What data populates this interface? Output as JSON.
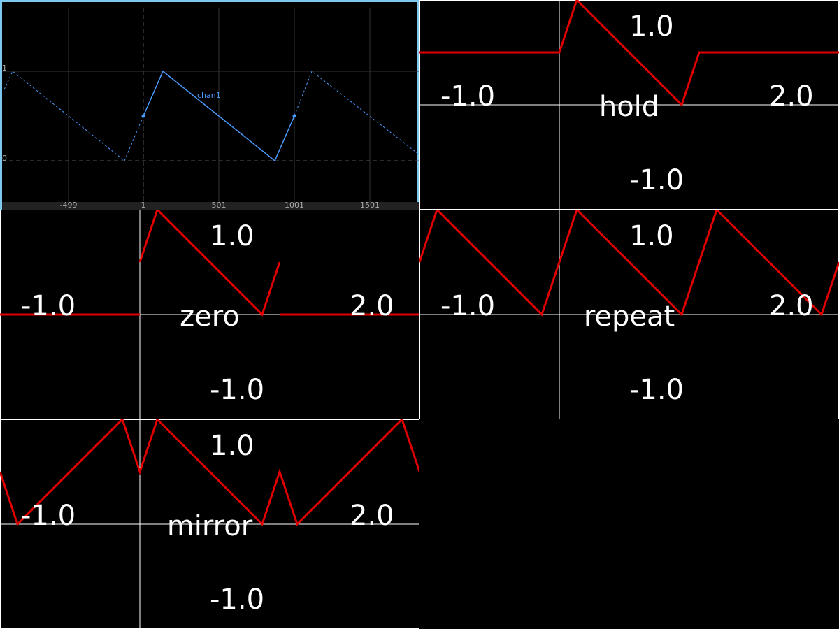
{
  "editor": {
    "channel_name": "chan1",
    "y_ticks": [
      "1",
      "0"
    ],
    "x_ticks": [
      "-499",
      "1",
      "501",
      "1001",
      "1501"
    ],
    "border_color": "#7ec8f0",
    "curve_color": "#4a9cff"
  },
  "panels": [
    {
      "name": "hold",
      "label": "hold",
      "x_min": "-1.0",
      "x_max": "2.0",
      "y_max": "1.0",
      "y_min": "-1.0"
    },
    {
      "name": "zero",
      "label": "zero",
      "x_min": "-1.0",
      "x_max": "2.0",
      "y_max": "1.0",
      "y_min": "-1.0"
    },
    {
      "name": "repeat",
      "label": "repeat",
      "x_min": "-1.0",
      "x_max": "2.0",
      "y_max": "1.0",
      "y_min": "-1.0"
    },
    {
      "name": "mirror",
      "label": "mirror",
      "x_min": "-1.0",
      "x_max": "2.0",
      "y_max": "1.0",
      "y_min": "-1.0"
    }
  ],
  "curve_color": "#e00000"
}
